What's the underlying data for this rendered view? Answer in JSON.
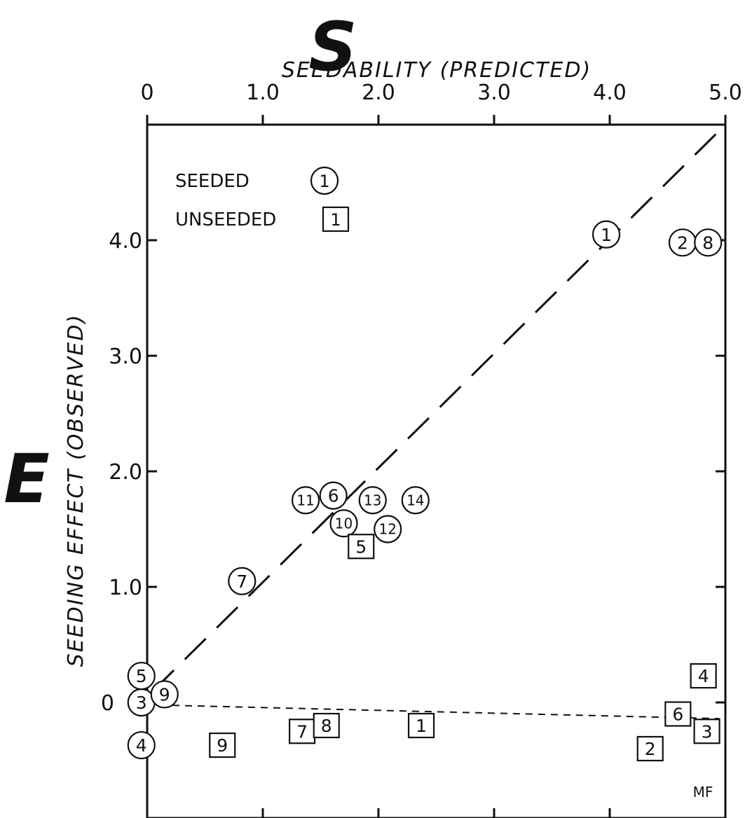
{
  "chart_data": {
    "type": "scatter",
    "title": "S",
    "xlabel": "SEEDABILITY (PREDICTED)",
    "ylabel": "SEEDING EFFECT (OBSERVED)",
    "ylabel_symbol": "E",
    "xlim": [
      0,
      5
    ],
    "ylim": [
      -0.75,
      5
    ],
    "x_ticks": [
      {
        "value": 0,
        "label": "0"
      },
      {
        "value": 1,
        "label": "1.0"
      },
      {
        "value": 2,
        "label": "2.0"
      },
      {
        "value": 3,
        "label": "3.0"
      },
      {
        "value": 4,
        "label": "4.0"
      },
      {
        "value": 5,
        "label": "5.0"
      }
    ],
    "y_ticks": [
      {
        "value": 0,
        "label": "0"
      },
      {
        "value": 1,
        "label": "1.0"
      },
      {
        "value": 2,
        "label": "2.0"
      },
      {
        "value": 3,
        "label": "3.0"
      },
      {
        "value": 4,
        "label": "4.0"
      }
    ],
    "grid": false,
    "legend_position": "top-left",
    "legend": [
      {
        "label": "SEEDED",
        "marker": "circle",
        "sample": "1"
      },
      {
        "label": "UNSEEDED",
        "marker": "square",
        "sample": "1"
      }
    ],
    "series": [
      {
        "name": "SEEDED",
        "marker": "circle",
        "points": [
          {
            "label": "1",
            "x": 3.97,
            "y": 4.05
          },
          {
            "label": "2",
            "x": 4.63,
            "y": 3.98
          },
          {
            "label": "8",
            "x": 4.85,
            "y": 3.98
          },
          {
            "label": "3",
            "x": -0.05,
            "y": 0.0
          },
          {
            "label": "4",
            "x": -0.05,
            "y": -0.37
          },
          {
            "label": "5",
            "x": -0.05,
            "y": 0.23
          },
          {
            "label": "6",
            "x": 1.61,
            "y": 1.79
          },
          {
            "label": "7",
            "x": 0.82,
            "y": 1.05
          },
          {
            "label": "9",
            "x": 0.15,
            "y": 0.07
          },
          {
            "label": "10",
            "x": 1.7,
            "y": 1.55
          },
          {
            "label": "11",
            "x": 1.37,
            "y": 1.75
          },
          {
            "label": "12",
            "x": 2.08,
            "y": 1.5
          },
          {
            "label": "13",
            "x": 1.95,
            "y": 1.75
          },
          {
            "label": "14",
            "x": 2.32,
            "y": 1.75
          }
        ]
      },
      {
        "name": "UNSEEDED",
        "marker": "square",
        "points": [
          {
            "label": "1",
            "x": 2.37,
            "y": -0.2
          },
          {
            "label": "2",
            "x": 4.35,
            "y": -0.4
          },
          {
            "label": "3",
            "x": 4.84,
            "y": -0.25
          },
          {
            "label": "4",
            "x": 4.81,
            "y": 0.23
          },
          {
            "label": "5",
            "x": 1.85,
            "y": 1.35
          },
          {
            "label": "6",
            "x": 4.59,
            "y": -0.1
          },
          {
            "label": "7",
            "x": 1.34,
            "y": -0.25
          },
          {
            "label": "8",
            "x": 1.55,
            "y": -0.2
          },
          {
            "label": "9",
            "x": 0.65,
            "y": -0.37
          }
        ]
      }
    ],
    "reference_lines": [
      {
        "name": "one-to-one",
        "style": "long-dash",
        "from": [
          0.05,
          0.1
        ],
        "to": [
          4.95,
          4.95
        ]
      },
      {
        "name": "zero-effect",
        "style": "short-dash",
        "from": [
          0.0,
          -0.02
        ],
        "to": [
          4.95,
          -0.14
        ]
      }
    ]
  },
  "signature": "MF"
}
